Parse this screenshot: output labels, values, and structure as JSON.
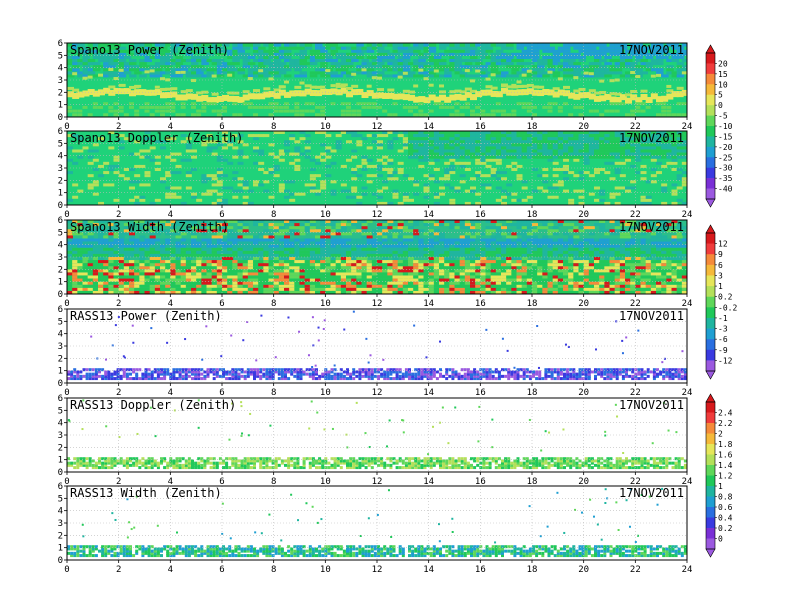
{
  "chart_data": {
    "type": "heatmap",
    "x_ticks": [
      "0",
      "2",
      "4",
      "6",
      "8",
      "10",
      "12",
      "14",
      "16",
      "18",
      "20",
      "22",
      "24"
    ],
    "y_ticks": [
      "0",
      "1",
      "2",
      "3",
      "4",
      "5",
      "6"
    ],
    "xlim": [
      0,
      24
    ],
    "ylim": [
      0,
      6
    ],
    "panels": [
      {
        "title": "Spano13 Power (Zenith)",
        "date": "17NOV2011",
        "kind": "power",
        "colorbar": 0,
        "background": "#1fd27a"
      },
      {
        "title": "Spano13 Doppler (Zenith)",
        "date": "17NOV2011",
        "kind": "doppler",
        "colorbar": 0,
        "background": "#1fd27a"
      },
      {
        "title": "Spano13 Width (Zenith)",
        "date": "17NOV2011",
        "kind": "width",
        "colorbar": 1,
        "background": "#2bbf8a"
      },
      {
        "title": "RASS13 Power (Zenith)",
        "date": "17NOV2011",
        "kind": "rass-power",
        "colorbar": 1,
        "background": "#ffffff"
      },
      {
        "title": "RASS13 Doppler (Zenith)",
        "date": "17NOV2011",
        "kind": "rass-doppler",
        "colorbar": 2,
        "background": "#ffffff"
      },
      {
        "title": "RASS13 Width (Zenith)",
        "date": "17NOV2011",
        "kind": "rass-width",
        "colorbar": 2,
        "background": "#ffffff"
      }
    ],
    "colorbars": [
      {
        "labels": [
          "20",
          "15",
          "10",
          "5",
          "0",
          "-5",
          "-10",
          "-15",
          "-20",
          "-25",
          "-30",
          "-35",
          "-40"
        ],
        "colors": [
          "#d7191c",
          "#f03c3c",
          "#f58a3a",
          "#f5b93a",
          "#e6e65a",
          "#b4e05a",
          "#5fd75a",
          "#20c85a",
          "#1fb5a0",
          "#1f9fd2",
          "#2a6fe0",
          "#3a3ae0",
          "#7a2fd6",
          "#9b59e0"
        ]
      },
      {
        "labels": [
          "12",
          "9",
          "6",
          "3",
          "1",
          "0.2",
          "-0.2",
          "-1",
          "-3",
          "-6",
          "-9",
          "-12"
        ],
        "colors": [
          "#d7191c",
          "#f03c3c",
          "#f58a3a",
          "#f5b93a",
          "#e6e65a",
          "#b4e05a",
          "#5fd75a",
          "#20c85a",
          "#1fb5a0",
          "#1f9fd2",
          "#2a6fe0",
          "#3a3ae0",
          "#9b59e0"
        ]
      },
      {
        "labels": [
          "2.4",
          "2.2",
          "2",
          "1.8",
          "1.6",
          "1.4",
          "1.2",
          "1",
          "0.8",
          "0.6",
          "0.4",
          "0.2",
          "0"
        ],
        "colors": [
          "#d7191c",
          "#f03c3c",
          "#f58a3a",
          "#f5b93a",
          "#e6e65a",
          "#b4e05a",
          "#5fd75a",
          "#20c85a",
          "#1fb5a0",
          "#1f9fd2",
          "#2a6fe0",
          "#3a3ae0",
          "#7a2fd6",
          "#9b59e0"
        ]
      }
    ]
  }
}
